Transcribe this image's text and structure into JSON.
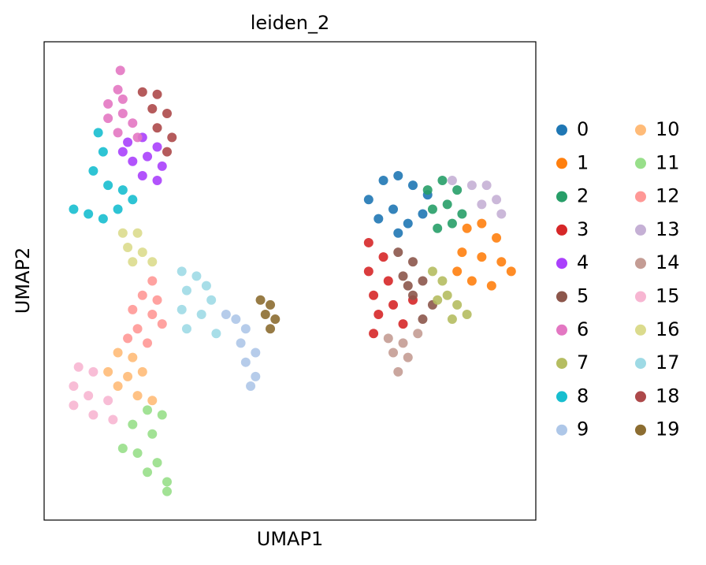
{
  "chart_data": {
    "type": "scatter",
    "title": "leiden_2",
    "x_label": "UMAP1",
    "y_label": "UMAP2",
    "xlim": [
      0,
      10
    ],
    "ylim": [
      0,
      10
    ],
    "series": [
      {
        "name": "0",
        "color": "#1f77b4",
        "x": [
          6.6,
          6.9,
          7.2,
          7.5,
          7.8,
          6.8,
          7.1,
          7.4,
          7.7,
          7.2
        ],
        "y": [
          6.7,
          7.1,
          7.2,
          7.0,
          6.8,
          6.3,
          6.5,
          6.2,
          6.4,
          6.0
        ]
      },
      {
        "name": "1",
        "color": "#ff7f0e",
        "x": [
          8.6,
          8.9,
          9.2,
          8.5,
          8.9,
          9.3,
          8.7,
          9.1,
          9.5,
          8.4
        ],
        "y": [
          6.1,
          6.2,
          5.9,
          5.6,
          5.5,
          5.4,
          5.0,
          4.9,
          5.2,
          5.2
        ]
      },
      {
        "name": "2",
        "color": "#279e68",
        "x": [
          7.8,
          8.1,
          8.4,
          7.9,
          8.2,
          8.5,
          8.0,
          8.3
        ],
        "y": [
          6.9,
          7.1,
          6.9,
          6.5,
          6.6,
          6.4,
          6.1,
          6.2
        ]
      },
      {
        "name": "3",
        "color": "#d62728",
        "x": [
          6.6,
          6.9,
          6.6,
          7.0,
          6.7,
          7.1,
          6.8,
          7.3,
          6.7,
          7.5
        ],
        "y": [
          5.8,
          5.5,
          5.2,
          5.0,
          4.7,
          4.5,
          4.3,
          4.1,
          3.9,
          4.6
        ]
      },
      {
        "name": "4",
        "color": "#aa40fc",
        "x": [
          1.7,
          2.0,
          2.3,
          1.8,
          2.1,
          2.4,
          2.0,
          2.3,
          1.6
        ],
        "y": [
          7.9,
          8.0,
          7.8,
          7.5,
          7.6,
          7.4,
          7.2,
          7.1,
          7.7
        ]
      },
      {
        "name": "5",
        "color": "#8c564b",
        "x": [
          7.2,
          7.5,
          7.3,
          7.7,
          7.5,
          7.9,
          7.7,
          7.4
        ],
        "y": [
          5.6,
          5.4,
          5.1,
          5.0,
          4.7,
          4.5,
          4.2,
          4.9
        ]
      },
      {
        "name": "6",
        "color": "#e377c2",
        "x": [
          1.55,
          1.5,
          1.3,
          1.6,
          1.3,
          1.6,
          1.8,
          1.5,
          1.9
        ],
        "y": [
          9.4,
          9.0,
          8.7,
          8.8,
          8.4,
          8.5,
          8.3,
          8.1,
          8.0
        ]
      },
      {
        "name": "7",
        "color": "#b5bd61",
        "x": [
          7.9,
          8.1,
          8.2,
          8.4,
          8.6,
          8.3,
          8.0
        ],
        "y": [
          5.2,
          5.0,
          4.7,
          4.5,
          4.3,
          4.2,
          4.6
        ]
      },
      {
        "name": "8",
        "color": "#17becf",
        "x": [
          1.1,
          1.2,
          1.0,
          1.3,
          1.6,
          0.6,
          0.9,
          1.2,
          1.5,
          1.8
        ],
        "y": [
          8.1,
          7.7,
          7.3,
          7.0,
          6.9,
          6.5,
          6.4,
          6.3,
          6.5,
          6.7
        ]
      },
      {
        "name": "9",
        "color": "#aec7e8",
        "x": [
          3.7,
          3.9,
          4.1,
          4.0,
          4.3,
          4.1,
          4.3,
          4.2
        ],
        "y": [
          4.3,
          4.2,
          4.0,
          3.7,
          3.5,
          3.3,
          3.0,
          2.8
        ]
      },
      {
        "name": "10",
        "color": "#ffbb78",
        "x": [
          1.5,
          1.8,
          1.3,
          1.7,
          2.0,
          1.5,
          1.9,
          2.2
        ],
        "y": [
          3.5,
          3.4,
          3.1,
          3.0,
          3.1,
          2.8,
          2.6,
          2.5
        ]
      },
      {
        "name": "11",
        "color": "#98df8a",
        "x": [
          2.1,
          2.4,
          1.8,
          2.2,
          1.6,
          1.9,
          2.3,
          2.1,
          2.5,
          2.5
        ],
        "y": [
          2.3,
          2.2,
          2.0,
          1.8,
          1.5,
          1.4,
          1.2,
          1.0,
          0.8,
          0.6
        ]
      },
      {
        "name": "12",
        "color": "#ff9896",
        "x": [
          2.2,
          2.0,
          2.3,
          1.8,
          2.2,
          1.9,
          2.4,
          1.7,
          2.1
        ],
        "y": [
          5.0,
          4.7,
          4.6,
          4.4,
          4.3,
          4.0,
          4.1,
          3.8,
          3.7
        ]
      },
      {
        "name": "13",
        "color": "#c5b0d5",
        "x": [
          8.3,
          8.7,
          9.0,
          9.2,
          8.9,
          9.3
        ],
        "y": [
          7.1,
          7.0,
          7.0,
          6.7,
          6.6,
          6.4
        ]
      },
      {
        "name": "14",
        "color": "#c49c94",
        "x": [
          7.0,
          7.3,
          7.6,
          7.1,
          7.4,
          7.2
        ],
        "y": [
          3.8,
          3.7,
          3.9,
          3.5,
          3.4,
          3.1
        ]
      },
      {
        "name": "15",
        "color": "#f7b6d2",
        "x": [
          0.7,
          1.0,
          0.6,
          0.9,
          1.3,
          0.6,
          1.0,
          1.4
        ],
        "y": [
          3.2,
          3.1,
          2.8,
          2.6,
          2.5,
          2.4,
          2.2,
          2.1
        ]
      },
      {
        "name": "16",
        "color": "#dbdb8d",
        "x": [
          1.6,
          1.9,
          1.7,
          2.0,
          2.2,
          1.8
        ],
        "y": [
          6.0,
          6.0,
          5.7,
          5.6,
          5.4,
          5.4
        ]
      },
      {
        "name": "17",
        "color": "#9edae5",
        "x": [
          2.8,
          3.1,
          3.3,
          2.9,
          3.4,
          2.8,
          3.2,
          2.9,
          3.5
        ],
        "y": [
          5.2,
          5.1,
          4.9,
          4.8,
          4.6,
          4.4,
          4.3,
          4.0,
          3.9
        ]
      },
      {
        "name": "18",
        "color": "#ad494a",
        "x": [
          2.0,
          2.3,
          2.2,
          2.5,
          2.3,
          2.6,
          2.5
        ],
        "y": [
          8.95,
          8.9,
          8.6,
          8.5,
          8.2,
          8.0,
          7.7
        ]
      },
      {
        "name": "19",
        "color": "#8c6d31",
        "x": [
          4.4,
          4.6,
          4.5,
          4.7,
          4.6
        ],
        "y": [
          4.6,
          4.5,
          4.3,
          4.2,
          4.0
        ]
      }
    ]
  }
}
